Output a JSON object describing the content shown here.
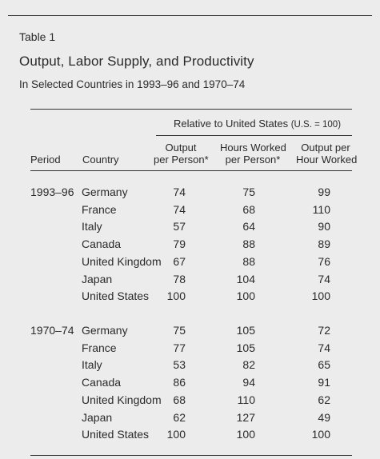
{
  "table_label": "Table 1",
  "title": "Output, Labor Supply, and Productivity",
  "subtitle": "In Selected Countries in 1993–96 and 1970–74",
  "header": {
    "group_label": "Relative to United States",
    "group_note": "(U.S. = 100)",
    "period": "Period",
    "country": "Country",
    "col1": [
      "Output",
      "per Person*"
    ],
    "col2": [
      "Hours Worked",
      "per Person*"
    ],
    "col3": [
      "Output per",
      "Hour Worked"
    ]
  },
  "groups": [
    {
      "period": "1993–96",
      "rows": [
        {
          "country": "Germany",
          "output": "74",
          "hours": "75",
          "productivity": "99"
        },
        {
          "country": "France",
          "output": "74",
          "hours": "68",
          "productivity": "110"
        },
        {
          "country": "Italy",
          "output": "57",
          "hours": "64",
          "productivity": "90"
        },
        {
          "country": "Canada",
          "output": "79",
          "hours": "88",
          "productivity": "89"
        },
        {
          "country": "United Kingdom",
          "output": "67",
          "hours": "88",
          "productivity": "76"
        },
        {
          "country": "Japan",
          "output": "78",
          "hours": "104",
          "productivity": "74"
        },
        {
          "country": "United States",
          "output": "100",
          "hours": "100",
          "productivity": "100"
        }
      ]
    },
    {
      "period": "1970–74",
      "rows": [
        {
          "country": "Germany",
          "output": "75",
          "hours": "105",
          "productivity": "72"
        },
        {
          "country": "France",
          "output": "77",
          "hours": "105",
          "productivity": "74"
        },
        {
          "country": "Italy",
          "output": "53",
          "hours": "82",
          "productivity": "65"
        },
        {
          "country": "Canada",
          "output": "86",
          "hours": "94",
          "productivity": "91"
        },
        {
          "country": "United Kingdom",
          "output": "68",
          "hours": "110",
          "productivity": "62"
        },
        {
          "country": "Japan",
          "output": "62",
          "hours": "127",
          "productivity": "49"
        },
        {
          "country": "United States",
          "output": "100",
          "hours": "100",
          "productivity": "100"
        }
      ]
    }
  ]
}
